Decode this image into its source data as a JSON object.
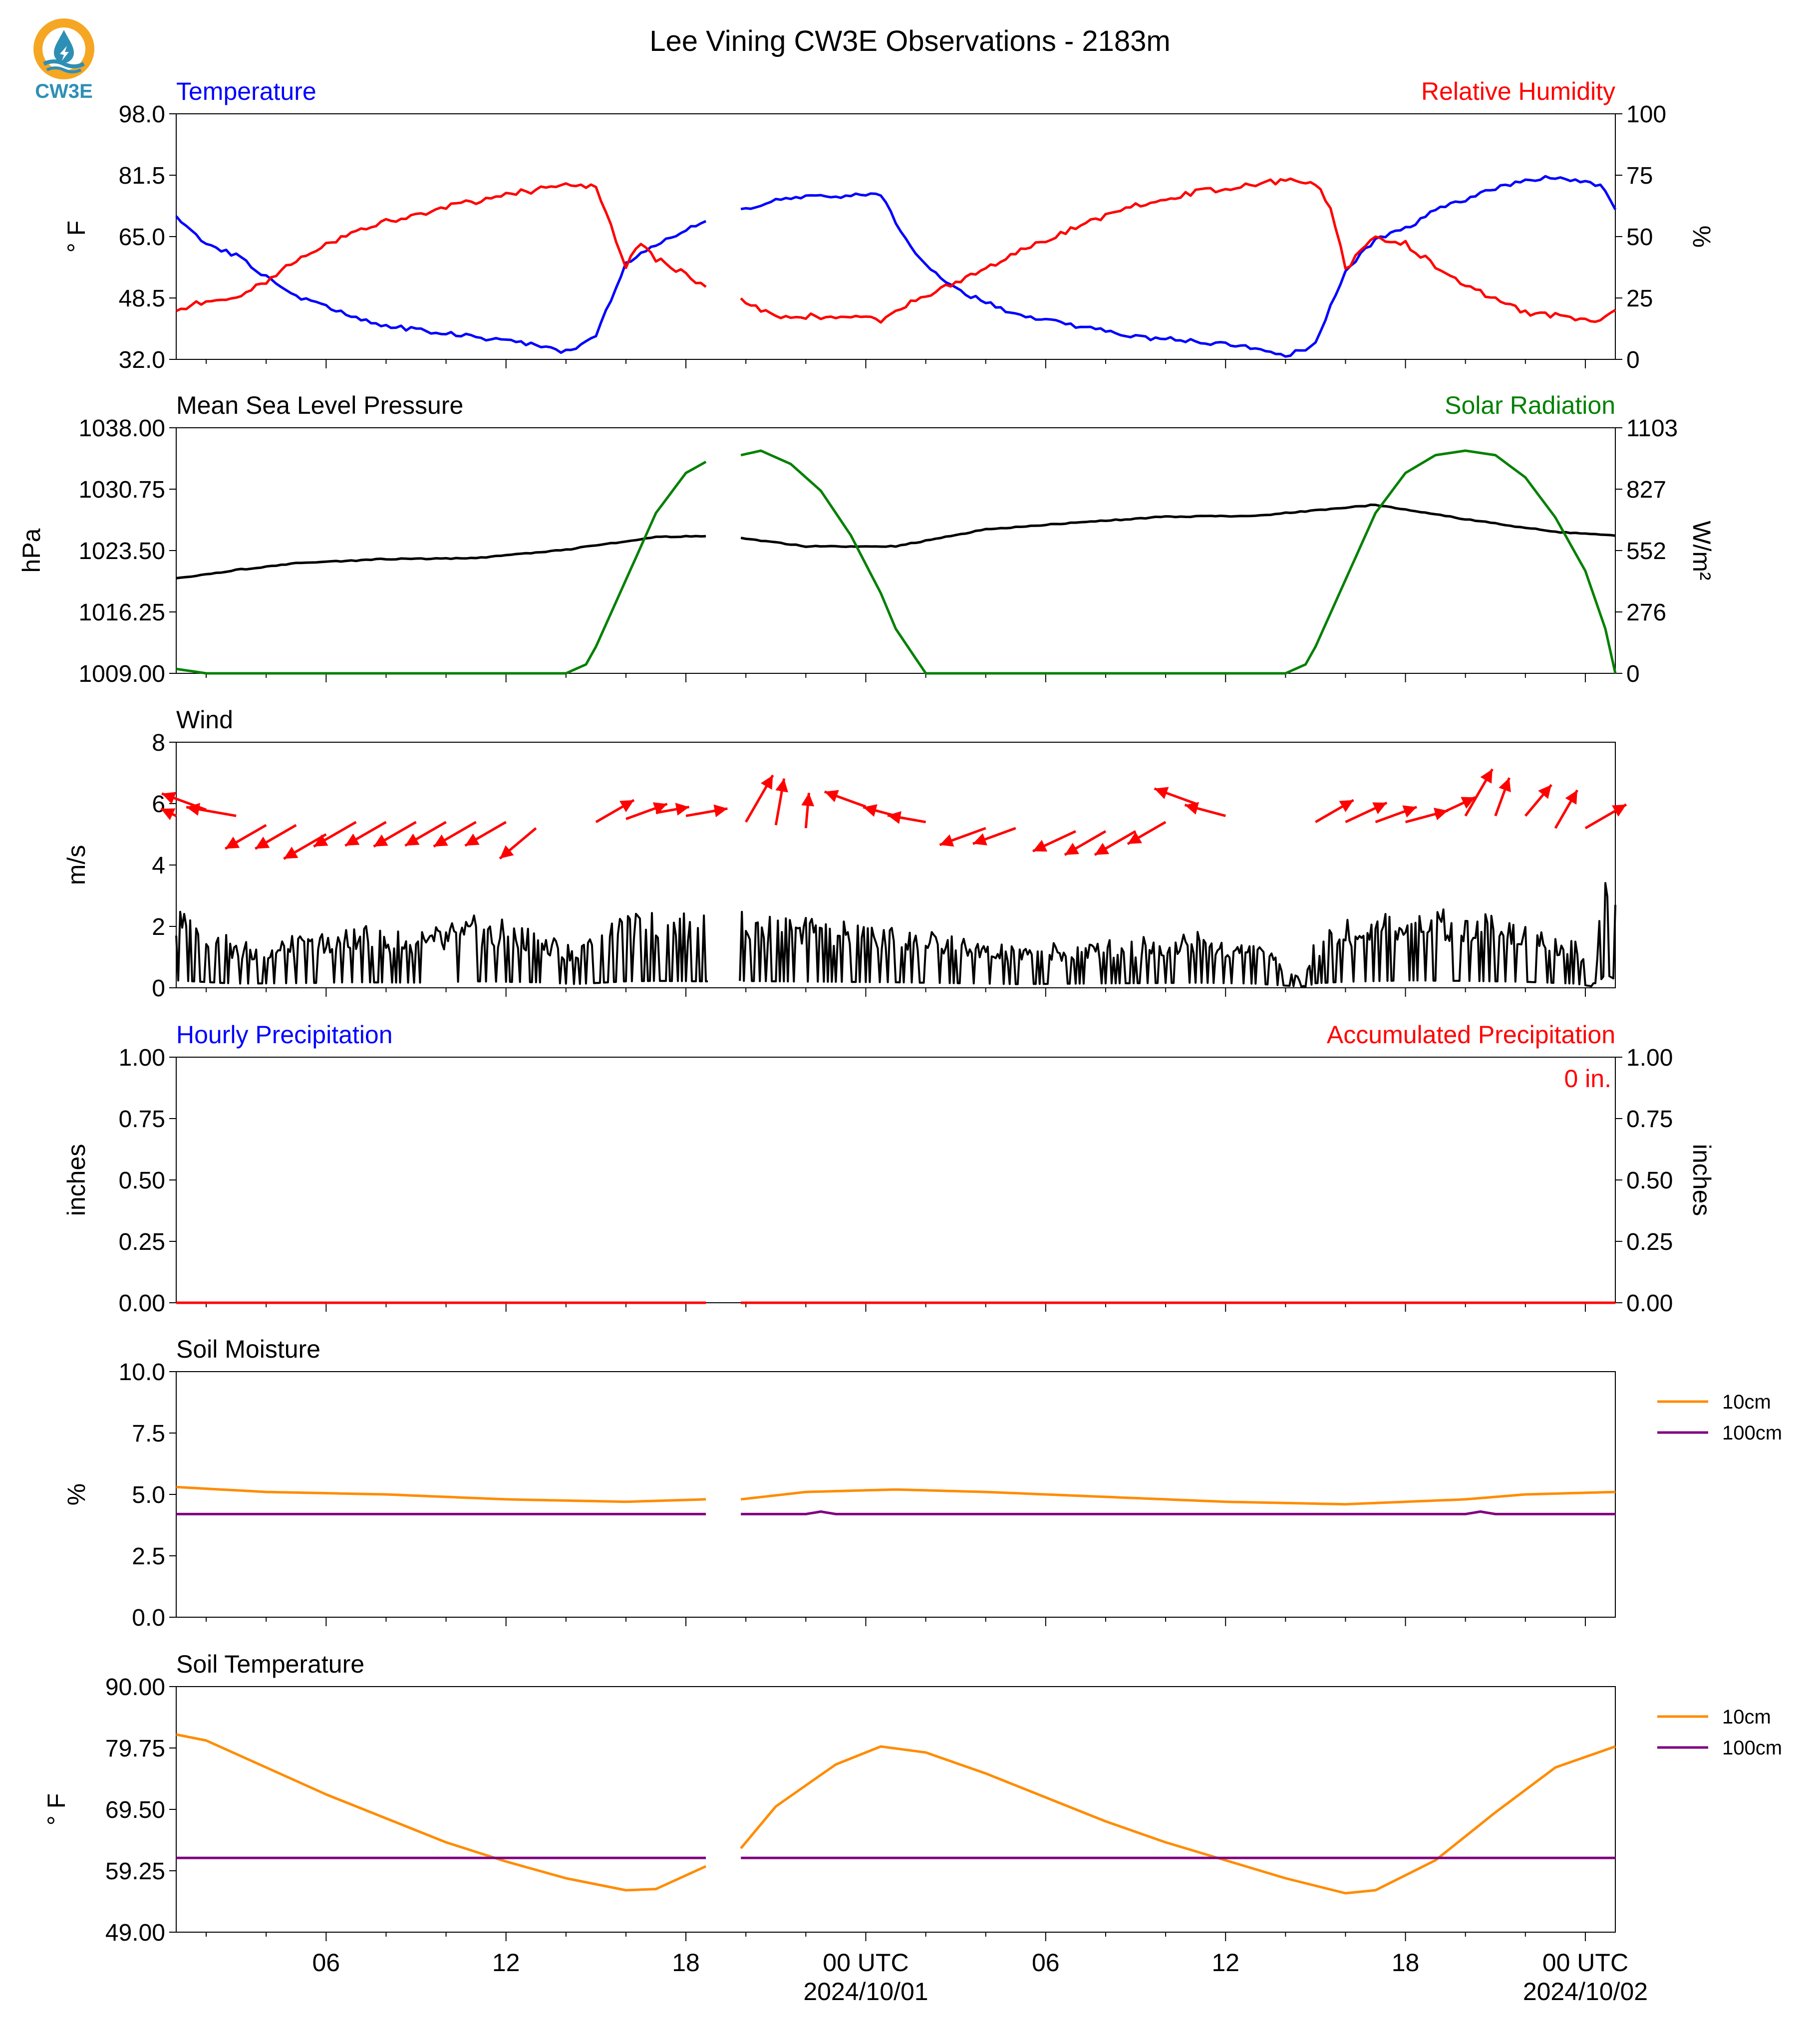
{
  "title": "Lee Vining CW3E Observations - 2183m",
  "logo": {
    "text": "CW3E",
    "colors": {
      "ring": "#f5a623",
      "drop": "#2e8fb5"
    }
  },
  "time_axis": {
    "start": "2024-09-30T01:00Z",
    "end": "2024-10-02T01:00Z",
    "tick_labels": [
      "06",
      "12",
      "18",
      "00 UTC",
      "06",
      "12",
      "18",
      "00 UTC"
    ],
    "date_labels": [
      "2024/10/01",
      "2024/10/02"
    ],
    "data_gap": [
      "2024-09-30T18:45Z",
      "2024-09-30T19:45Z"
    ]
  },
  "chart_data": [
    {
      "name": "temperature-rh",
      "type": "line",
      "left_title": "Temperature",
      "right_title": "Relative Humidity",
      "ylabel_left": "° F",
      "ylabel_right": "%",
      "ylim_left": [
        32.0,
        98.0
      ],
      "ylim_right": [
        0,
        100
      ],
      "yticks_left": [
        "32.0",
        "48.5",
        "65.0",
        "81.5",
        "98.0"
      ],
      "yticks_right": [
        "0",
        "25",
        "50",
        "75",
        "100"
      ],
      "series": [
        {
          "color": "#0000ff",
          "axis": "left",
          "x": [
            "2024-09-30T01:00Z",
            "2024-09-30T02:00Z",
            "2024-09-30T03:00Z",
            "2024-09-30T04:00Z",
            "2024-09-30T05:00Z",
            "2024-09-30T06:00Z",
            "2024-09-30T08:00Z",
            "2024-09-30T10:00Z",
            "2024-09-30T12:00Z",
            "2024-09-30T13:30Z",
            "2024-09-30T14:00Z",
            "2024-09-30T15:00Z",
            "2024-09-30T16:00Z",
            "2024-09-30T17:00Z",
            "2024-09-30T18:40Z",
            "2024-09-30T19:50Z",
            "2024-09-30T21:00Z",
            "2024-09-30T23:00Z",
            "2024-10-01T00:30Z",
            "2024-10-01T01:30Z",
            "2024-10-01T02:30Z",
            "2024-10-01T03:30Z",
            "2024-10-01T05:00Z",
            "2024-10-01T07:00Z",
            "2024-10-01T09:00Z",
            "2024-10-01T11:00Z",
            "2024-10-01T13:00Z",
            "2024-10-01T14:00Z",
            "2024-10-01T15:00Z",
            "2024-10-01T16:00Z",
            "2024-10-01T17:00Z",
            "2024-10-01T18:00Z",
            "2024-10-01T19:00Z",
            "2024-10-01T20:00Z",
            "2024-10-01T21:00Z",
            "2024-10-01T22:00Z",
            "2024-10-01T23:00Z",
            "2024-10-02T00:30Z",
            "2024-10-02T01:00Z"
          ],
          "y": [
            70,
            63,
            60,
            54,
            49,
            46,
            41,
            39,
            37,
            35,
            34,
            38,
            58,
            63,
            69,
            72,
            75,
            76,
            76,
            62,
            54,
            49,
            44,
            41,
            38,
            37,
            35,
            33,
            36,
            56,
            64,
            67,
            72,
            75,
            78,
            80,
            81,
            79,
            72
          ]
        },
        {
          "color": "#ff0000",
          "axis": "right",
          "x": [
            "2024-09-30T01:00Z",
            "2024-09-30T02:00Z",
            "2024-09-30T03:00Z",
            "2024-09-30T04:00Z",
            "2024-09-30T05:00Z",
            "2024-09-30T06:00Z",
            "2024-09-30T08:00Z",
            "2024-09-30T10:00Z",
            "2024-09-30T12:00Z",
            "2024-09-30T13:30Z",
            "2024-09-30T14:00Z",
            "2024-09-30T15:00Z",
            "2024-09-30T16:00Z",
            "2024-09-30T16:30Z",
            "2024-09-30T17:00Z",
            "2024-09-30T18:40Z",
            "2024-09-30T19:50Z",
            "2024-09-30T21:00Z",
            "2024-09-30T23:00Z",
            "2024-10-01T00:30Z",
            "2024-10-01T01:30Z",
            "2024-10-01T03:00Z",
            "2024-10-01T05:00Z",
            "2024-10-01T07:00Z",
            "2024-10-01T09:00Z",
            "2024-10-01T11:00Z",
            "2024-10-01T13:00Z",
            "2024-10-01T14:00Z",
            "2024-10-01T15:00Z",
            "2024-10-01T15:30Z",
            "2024-10-01T16:00Z",
            "2024-10-01T17:00Z",
            "2024-10-01T18:00Z",
            "2024-10-01T19:00Z",
            "2024-10-01T20:00Z",
            "2024-10-01T22:00Z",
            "2024-10-02T00:30Z",
            "2024-10-02T01:00Z"
          ],
          "y": [
            20,
            24,
            25,
            32,
            40,
            47,
            56,
            62,
            67,
            70,
            72,
            70,
            38,
            48,
            41,
            30,
            24,
            18,
            17,
            16,
            23,
            31,
            43,
            54,
            63,
            68,
            71,
            73,
            72,
            62,
            37,
            50,
            47,
            38,
            30,
            19,
            16,
            20
          ]
        }
      ]
    },
    {
      "name": "pressure-solar",
      "type": "line",
      "left_title": "Mean Sea Level Pressure",
      "right_title": "Solar Radiation",
      "ylabel_left": "hPa",
      "ylabel_right": "W/m²",
      "ylim_left": [
        1009.0,
        1038.0
      ],
      "ylim_right": [
        0,
        1103
      ],
      "yticks_left": [
        "1009.00",
        "1016.25",
        "1023.50",
        "1030.75",
        "1038.00"
      ],
      "yticks_right": [
        "0",
        "276",
        "552",
        "827",
        "1103"
      ],
      "series": [
        {
          "color": "#000000",
          "axis": "left",
          "x": [
            "2024-09-30T01:00Z",
            "2024-09-30T03:00Z",
            "2024-09-30T05:00Z",
            "2024-09-30T08:00Z",
            "2024-09-30T11:00Z",
            "2024-09-30T14:00Z",
            "2024-09-30T17:00Z",
            "2024-09-30T18:40Z",
            "2024-09-30T19:50Z",
            "2024-09-30T22:00Z",
            "2024-10-01T01:00Z",
            "2024-10-01T04:00Z",
            "2024-10-01T07:00Z",
            "2024-10-01T10:00Z",
            "2024-10-01T13:00Z",
            "2024-10-01T17:00Z",
            "2024-10-01T20:00Z",
            "2024-10-01T23:00Z",
            "2024-10-02T01:00Z"
          ],
          "y": [
            1020.2,
            1021.2,
            1022.0,
            1022.5,
            1022.6,
            1023.6,
            1025.1,
            1025.2,
            1025.0,
            1024.0,
            1024.0,
            1026.0,
            1026.8,
            1027.5,
            1027.6,
            1028.9,
            1027.2,
            1025.7,
            1025.3
          ]
        },
        {
          "color": "#008000",
          "axis": "right",
          "x": [
            "2024-09-30T01:00Z",
            "2024-09-30T02:00Z",
            "2024-09-30T14:00Z",
            "2024-09-30T14:40Z",
            "2024-09-30T15:00Z",
            "2024-09-30T16:00Z",
            "2024-09-30T17:00Z",
            "2024-09-30T18:00Z",
            "2024-09-30T18:40Z",
            "2024-09-30T19:50Z",
            "2024-09-30T20:30Z",
            "2024-09-30T21:30Z",
            "2024-09-30T22:30Z",
            "2024-09-30T23:30Z",
            "2024-10-01T00:30Z",
            "2024-10-01T01:00Z",
            "2024-10-01T02:00Z",
            "2024-10-01T14:00Z",
            "2024-10-01T14:40Z",
            "2024-10-01T15:00Z",
            "2024-10-01T16:00Z",
            "2024-10-01T17:00Z",
            "2024-10-01T18:00Z",
            "2024-10-01T19:00Z",
            "2024-10-01T20:00Z",
            "2024-10-01T21:00Z",
            "2024-10-01T22:00Z",
            "2024-10-01T23:00Z",
            "2024-10-02T00:00Z",
            "2024-10-02T00:40Z",
            "2024-10-02T01:00Z"
          ],
          "y": [
            20,
            0,
            0,
            40,
            120,
            420,
            720,
            900,
            950,
            980,
            1000,
            940,
            820,
            620,
            360,
            200,
            0,
            0,
            40,
            120,
            420,
            720,
            900,
            980,
            1000,
            980,
            880,
            700,
            460,
            200,
            0
          ]
        }
      ]
    },
    {
      "name": "wind",
      "type": "line",
      "left_title": "Wind",
      "ylabel_left": "m/s",
      "ylim_left": [
        0,
        8
      ],
      "yticks_left": [
        "0",
        "2",
        "4",
        "6",
        "8"
      ],
      "series": [
        {
          "color": "#000000",
          "axis": "left",
          "x": [
            "2024-09-30T01:00Z",
            "2024-09-30T03:00Z",
            "2024-09-30T05:00Z",
            "2024-09-30T07:00Z",
            "2024-09-30T09:00Z",
            "2024-09-30T11:00Z",
            "2024-09-30T13:00Z",
            "2024-09-30T14:20Z",
            "2024-09-30T16:00Z",
            "2024-09-30T17:00Z",
            "2024-09-30T18:40Z",
            "2024-09-30T19:50Z",
            "2024-09-30T21:00Z",
            "2024-09-30T23:00Z",
            "2024-10-01T01:00Z",
            "2024-10-01T03:00Z",
            "2024-10-01T05:00Z",
            "2024-10-01T07:00Z",
            "2024-10-01T09:00Z",
            "2024-10-01T11:00Z",
            "2024-10-01T13:00Z",
            "2024-10-01T14:40Z",
            "2024-10-01T15:00Z",
            "2024-10-01T16:00Z",
            "2024-10-01T18:00Z",
            "2024-10-01T20:00Z",
            "2024-10-01T22:00Z",
            "2024-10-01T23:40Z",
            "2024-10-02T00:20Z",
            "2024-10-02T00:40Z",
            "2024-10-02T01:00Z"
          ],
          "y": [
            1.6,
            0.9,
            1.0,
            1.2,
            1.1,
            1.4,
            1.2,
            0.8,
            1.4,
            1.5,
            1.4,
            1.5,
            1.4,
            1.3,
            1.2,
            1.0,
            0.8,
            0.9,
            1.0,
            1.1,
            0.9,
            0.2,
            1.0,
            1.3,
            1.6,
            1.5,
            1.3,
            0.9,
            0.2,
            3.0,
            1.8
          ]
        }
      ],
      "barbs": {
        "color": "#ff0000",
        "x": [
          "2024-09-30T01:00Z",
          "2024-09-30T02:00Z",
          "2024-09-30T03:00Z",
          "2024-09-30T04:00Z",
          "2024-09-30T05:00Z",
          "2024-09-30T06:00Z",
          "2024-09-30T07:00Z",
          "2024-09-30T08:00Z",
          "2024-09-30T09:00Z",
          "2024-09-30T10:00Z",
          "2024-09-30T11:00Z",
          "2024-09-30T12:00Z",
          "2024-09-30T13:00Z",
          "2024-09-30T15:00Z",
          "2024-09-30T16:00Z",
          "2024-09-30T17:00Z",
          "2024-09-30T18:00Z",
          "2024-09-30T20:00Z",
          "2024-09-30T21:00Z",
          "2024-09-30T22:00Z",
          "2024-10-01T00:00Z",
          "2024-10-01T01:00Z",
          "2024-10-01T02:00Z",
          "2024-10-01T04:00Z",
          "2024-10-01T05:00Z",
          "2024-10-01T07:00Z",
          "2024-10-01T08:00Z",
          "2024-10-01T09:00Z",
          "2024-10-01T10:00Z",
          "2024-10-01T11:00Z",
          "2024-10-01T12:00Z",
          "2024-10-01T15:00Z",
          "2024-10-01T16:00Z",
          "2024-10-01T17:00Z",
          "2024-10-01T18:00Z",
          "2024-10-01T19:00Z",
          "2024-10-01T20:00Z",
          "2024-10-01T21:00Z",
          "2024-10-01T22:00Z",
          "2024-10-01T23:00Z",
          "2024-10-02T00:00Z"
        ],
        "dir_deg": [
          295,
          290,
          280,
          240,
          240,
          240,
          240,
          240,
          240,
          240,
          240,
          240,
          230,
          60,
          70,
          80,
          80,
          30,
          10,
          5,
          290,
          285,
          280,
          250,
          250,
          245,
          240,
          240,
          240,
          290,
          285,
          60,
          65,
          70,
          75,
          65,
          30,
          20,
          40,
          30,
          60
        ],
        "speed_ms": [
          1.0,
          2.8,
          3.0,
          2.8,
          2.8,
          2.9,
          2.9,
          2.8,
          2.9,
          2.8,
          2.9,
          2.8,
          2.8,
          2.6,
          2.6,
          2.0,
          2.5,
          3.2,
          2.8,
          2.1,
          2.6,
          2.0,
          2.3,
          2.9,
          2.7,
          2.8,
          2.8,
          2.8,
          2.6,
          2.6,
          2.5,
          2.6,
          2.7,
          2.6,
          2.6,
          2.6,
          3.2,
          2.4,
          2.4,
          2.6,
          2.8
        ],
        "base_ms": [
          5.6,
          5.8,
          5.6,
          5.3,
          5.3,
          5.0,
          5.4,
          5.4,
          5.4,
          5.4,
          5.4,
          5.4,
          5.2,
          5.4,
          5.5,
          5.7,
          5.6,
          5.4,
          5.3,
          5.2,
          5.9,
          5.6,
          5.4,
          5.2,
          5.2,
          5.1,
          5.1,
          5.1,
          5.4,
          6.0,
          5.6,
          5.4,
          5.4,
          5.4,
          5.4,
          5.6,
          5.6,
          5.6,
          5.6,
          5.2,
          5.2
        ]
      }
    },
    {
      "name": "precipitation",
      "type": "line",
      "left_title": "Hourly Precipitation",
      "right_title": "Accumulated Precipitation",
      "ylabel_left": "inches",
      "ylabel_right": "inches",
      "ylim_left": [
        0,
        1
      ],
      "ylim_right": [
        0,
        1
      ],
      "yticks_left": [
        "0.00",
        "0.25",
        "0.50",
        "0.75",
        "1.00"
      ],
      "yticks_right": [
        "0.00",
        "0.25",
        "0.50",
        "0.75",
        "1.00"
      ],
      "annotation": "0 in.",
      "series": [
        {
          "color": "#0000ff",
          "axis": "left",
          "x": [
            "2024-09-30T01:00Z",
            "2024-10-02T01:00Z"
          ],
          "y": [
            0,
            0
          ]
        },
        {
          "color": "#ff0000",
          "axis": "right",
          "x": [
            "2024-09-30T01:00Z",
            "2024-10-02T01:00Z"
          ],
          "y": [
            0,
            0
          ]
        }
      ]
    },
    {
      "name": "soil-moisture",
      "type": "line",
      "left_title": "Soil Moisture",
      "ylabel_left": "%",
      "ylim_left": [
        0.0,
        10.0
      ],
      "yticks_left": [
        "0.0",
        "2.5",
        "5.0",
        "7.5",
        "10.0"
      ],
      "legend": {
        "placement": "outside-right",
        "entries": [
          "10cm",
          "100cm"
        ]
      },
      "series": [
        {
          "name": "10cm",
          "color": "#ff8c00",
          "axis": "left",
          "x": [
            "2024-09-30T01:00Z",
            "2024-09-30T04:00Z",
            "2024-09-30T08:00Z",
            "2024-09-30T12:00Z",
            "2024-09-30T16:00Z",
            "2024-09-30T18:40Z",
            "2024-09-30T19:50Z",
            "2024-09-30T22:00Z",
            "2024-10-01T01:00Z",
            "2024-10-01T04:00Z",
            "2024-10-01T08:00Z",
            "2024-10-01T12:00Z",
            "2024-10-01T16:00Z",
            "2024-10-01T20:00Z",
            "2024-10-01T22:00Z",
            "2024-10-02T01:00Z"
          ],
          "y": [
            5.3,
            5.1,
            5.0,
            4.8,
            4.7,
            4.8,
            4.8,
            5.1,
            5.2,
            5.1,
            4.9,
            4.7,
            4.6,
            4.8,
            5.0,
            5.1
          ]
        },
        {
          "name": "100cm",
          "color": "#800080",
          "axis": "left",
          "x": [
            "2024-09-30T01:00Z",
            "2024-09-30T18:40Z",
            "2024-09-30T19:50Z",
            "2024-09-30T22:00Z",
            "2024-09-30T22:30Z",
            "2024-09-30T23:00Z",
            "2024-10-01T20:00Z",
            "2024-10-01T20:30Z",
            "2024-10-01T21:00Z",
            "2024-10-02T01:00Z"
          ],
          "y": [
            4.2,
            4.2,
            4.2,
            4.2,
            4.3,
            4.2,
            4.2,
            4.3,
            4.2,
            4.2
          ]
        }
      ]
    },
    {
      "name": "soil-temperature",
      "type": "line",
      "left_title": "Soil Temperature",
      "ylabel_left": "° F",
      "ylim_left": [
        49.0,
        90.0
      ],
      "yticks_left": [
        "49.00",
        "59.25",
        "69.50",
        "79.75",
        "90.00"
      ],
      "legend": {
        "placement": "outside-right",
        "entries": [
          "10cm",
          "100cm"
        ]
      },
      "series": [
        {
          "name": "10cm",
          "color": "#ff8c00",
          "axis": "left",
          "x": [
            "2024-09-30T01:00Z",
            "2024-09-30T02:00Z",
            "2024-09-30T04:00Z",
            "2024-09-30T06:00Z",
            "2024-09-30T08:00Z",
            "2024-09-30T10:00Z",
            "2024-09-30T12:00Z",
            "2024-09-30T14:00Z",
            "2024-09-30T16:00Z",
            "2024-09-30T17:00Z",
            "2024-09-30T18:40Z",
            "2024-09-30T19:50Z",
            "2024-09-30T21:00Z",
            "2024-09-30T23:00Z",
            "2024-10-01T00:30Z",
            "2024-10-01T02:00Z",
            "2024-10-01T04:00Z",
            "2024-10-01T06:00Z",
            "2024-10-01T08:00Z",
            "2024-10-01T10:00Z",
            "2024-10-01T12:00Z",
            "2024-10-01T14:00Z",
            "2024-10-01T16:00Z",
            "2024-10-01T17:00Z",
            "2024-10-01T19:00Z",
            "2024-10-01T21:00Z",
            "2024-10-01T23:00Z",
            "2024-10-02T01:00Z"
          ],
          "y": [
            82.0,
            81.0,
            76.5,
            72.0,
            68.0,
            64.0,
            60.8,
            58.0,
            56.0,
            56.2,
            60.0,
            63.0,
            70.0,
            77.0,
            80.0,
            79.0,
            75.5,
            71.5,
            67.5,
            64.0,
            61.0,
            58.0,
            55.5,
            56.0,
            61.0,
            69.0,
            76.5,
            80.0
          ]
        },
        {
          "name": "100cm",
          "color": "#800080",
          "axis": "left",
          "x": [
            "2024-09-30T01:00Z",
            "2024-09-30T18:40Z",
            "2024-09-30T19:50Z",
            "2024-10-02T01:00Z"
          ],
          "y": [
            61.4,
            61.4,
            61.4,
            61.4
          ]
        }
      ]
    }
  ]
}
